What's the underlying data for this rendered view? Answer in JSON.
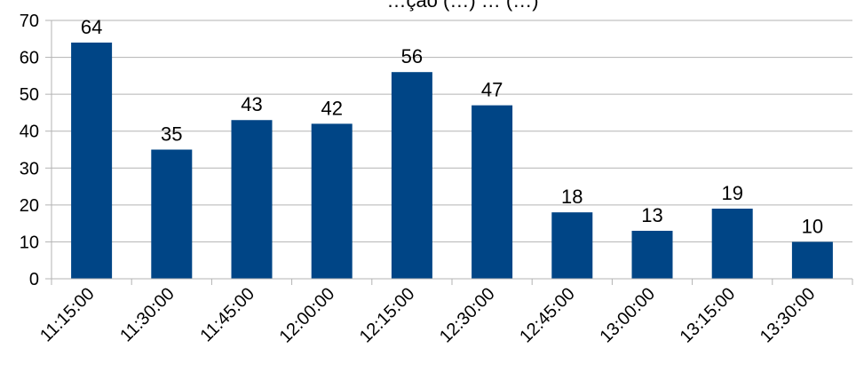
{
  "chart_data": {
    "type": "bar",
    "title": "…ção (…) … (…)",
    "categories": [
      "11:15:00",
      "11:30:00",
      "11:45:00",
      "12:00:00",
      "12:15:00",
      "12:30:00",
      "12:45:00",
      "13:00:00",
      "13:15:00",
      "13:30:00"
    ],
    "values": [
      64,
      35,
      43,
      42,
      56,
      47,
      18,
      13,
      19,
      10
    ],
    "ylim": [
      0,
      70
    ],
    "yticks": [
      0,
      10,
      20,
      30,
      40,
      50,
      60,
      70
    ],
    "grid": true,
    "legend": "none",
    "colors": {
      "bar": "#004586",
      "grid": "#b3b3b3",
      "axis": "#b3b3b3"
    }
  }
}
